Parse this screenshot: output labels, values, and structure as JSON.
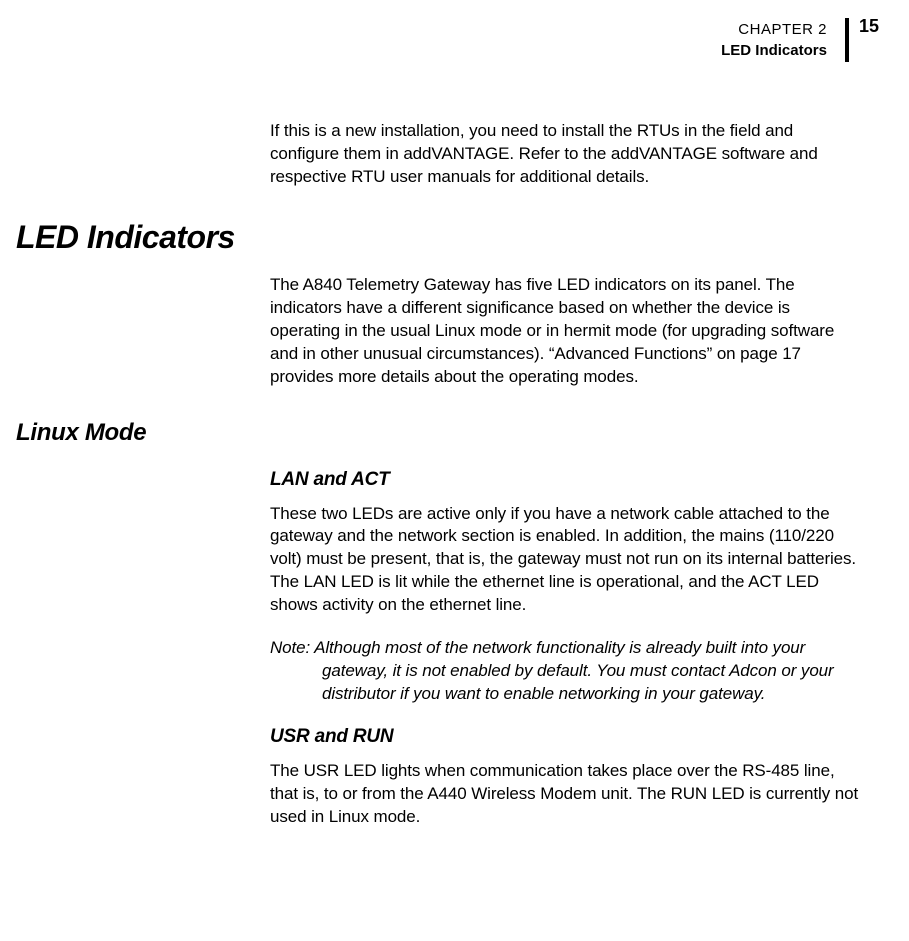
{
  "header": {
    "chapter": "CHAPTER 2",
    "section": "LED Indicators",
    "page_number": "15"
  },
  "body": {
    "intro_para": "If this is a new installation, you need to install the RTUs in the field and configure them in addVANTAGE. Refer to the addVANTAGE software and respective RTU user manuals for additional details.",
    "h1": "LED Indicators",
    "led_para": "The A840 Telemetry Gateway has five LED indicators on its panel. The indicators have a different significance based on whether the device is operating in the usual Linux mode or in hermit mode (for upgrading software and in other unusual circumstances). “Advanced Functions” on page 17 provides more details about the operating modes.",
    "h2": "Linux Mode",
    "lan_act": {
      "heading": "LAN and ACT",
      "para": "These two LEDs are active only if you have a network cable attached to the gateway and the network section is enabled. In addition, the mains (110/220 volt) must be present, that is, the gateway must not run on its internal batteries. The LAN LED is lit while the ethernet line is operational, and the ACT LED shows activity on the ethernet line.",
      "note": "Note: Although most of the network functionality is already built into your gateway, it is not enabled by default. You must contact Adcon or your distributor if you want to enable net­working in your gateway."
    },
    "usr_run": {
      "heading": "USR and RUN",
      "para": "The USR LED lights when communication takes place over the RS-485 line, that is, to or from the A440 Wireless Modem unit. The RUN LED is currently not used in Linux mode."
    }
  }
}
